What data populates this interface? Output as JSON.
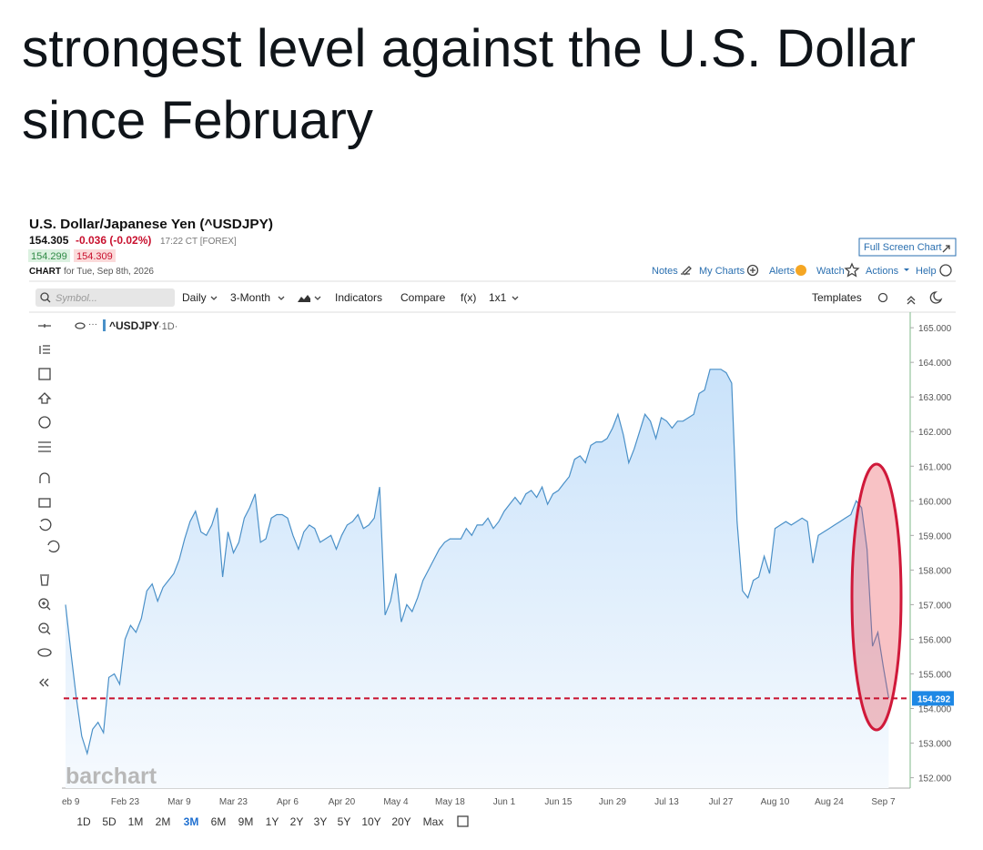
{
  "tweet": {
    "lines": [
      "strongest level against the U.S. Dollar",
      "since February"
    ]
  },
  "quote": {
    "title": "U.S. Dollar/Japanese Yen (^USDJPY)",
    "last": "154.305",
    "change": "-0.036 (-0.02%)",
    "time": "17:22 CT [FOREX]",
    "bid": "154.299",
    "ask": "154.309",
    "chart_label": "CHART",
    "chart_for": "for Tue, Sep 8th, 2026",
    "full_screen": "Full Screen Chart",
    "links": [
      "Notes",
      "My Charts",
      "Alerts",
      "Watch",
      "Actions",
      "Help"
    ]
  },
  "toolbar": {
    "symbol_placeholder": "Symbol...",
    "items": [
      "Daily",
      "3-Month",
      "Indicators",
      "Compare",
      "f(x)",
      "1x1"
    ],
    "templates": "Templates"
  },
  "ranges": {
    "items": [
      "1D",
      "5D",
      "1M",
      "2M",
      "3M",
      "6M",
      "9M",
      "1Y",
      "2Y",
      "3Y",
      "5Y",
      "10Y",
      "20Y",
      "Max"
    ],
    "selected": 4
  },
  "chart_data": {
    "type": "line",
    "watermark": "barchart",
    "interval_label": "·1D·",
    "categories": [
      null,
      "eb 9",
      null,
      null,
      null,
      null,
      null,
      null,
      null,
      null,
      null,
      "Feb 23",
      null,
      null,
      null,
      null,
      null,
      null,
      null,
      null,
      null,
      "Mar 9",
      null,
      null,
      null,
      null,
      null,
      null,
      null,
      null,
      null,
      "Mar 23",
      null,
      null,
      null,
      null,
      null,
      null,
      null,
      null,
      null,
      "Apr 6",
      null,
      null,
      null,
      null,
      null,
      null,
      null,
      null,
      null,
      "Apr 20",
      null,
      null,
      null,
      null,
      null,
      null,
      null,
      null,
      null,
      "May 4",
      null,
      null,
      null,
      null,
      null,
      null,
      null,
      null,
      null,
      "May 18",
      null,
      null,
      null,
      null,
      null,
      null,
      null,
      null,
      null,
      "Jun 1",
      null,
      null,
      null,
      null,
      null,
      null,
      null,
      null,
      null,
      "Jun 15",
      null,
      null,
      null,
      null,
      null,
      null,
      null,
      null,
      null,
      "Jun 29",
      null,
      null,
      null,
      null,
      null,
      null,
      null,
      null,
      null,
      "Jul 13",
      null,
      null,
      null,
      null,
      null,
      null,
      null,
      null,
      null,
      "Jul 27",
      null,
      null,
      null,
      null,
      null,
      null,
      null,
      null,
      null,
      "Aug 10",
      null,
      null,
      null,
      null,
      null,
      null,
      null,
      null,
      null,
      "Aug 24",
      null,
      null,
      null,
      null,
      null,
      null,
      null,
      null,
      null,
      "Sep 7",
      null
    ],
    "series": [
      {
        "name": "^USDJPY",
        "color": "#4a90c8",
        "values": [
          157.0,
          155.6,
          154.3,
          153.2,
          152.7,
          153.4,
          153.6,
          153.3,
          154.9,
          155.0,
          154.7,
          156.0,
          156.4,
          156.2,
          156.6,
          157.4,
          157.6,
          157.1,
          157.5,
          157.7,
          157.9,
          158.3,
          158.9,
          159.4,
          159.7,
          159.1,
          159.0,
          159.3,
          159.8,
          157.8,
          159.1,
          158.5,
          158.8,
          159.5,
          159.8,
          160.2,
          158.8,
          158.9,
          159.5,
          159.6,
          159.6,
          159.5,
          159.0,
          158.6,
          159.1,
          159.3,
          159.2,
          158.8,
          158.9,
          159.0,
          158.6,
          159.0,
          159.3,
          159.4,
          159.6,
          159.2,
          159.3,
          159.5,
          160.4,
          156.7,
          157.1,
          157.9,
          156.5,
          157.0,
          156.8,
          157.2,
          157.7,
          158.0,
          158.3,
          158.6,
          158.8,
          158.9,
          158.9,
          158.9,
          159.2,
          159.0,
          159.3,
          159.3,
          159.5,
          159.2,
          159.4,
          159.7,
          159.9,
          160.1,
          159.9,
          160.2,
          160.3,
          160.1,
          160.4,
          159.9,
          160.2,
          160.3,
          160.5,
          160.7,
          161.2,
          161.3,
          161.1,
          161.6,
          161.7,
          161.7,
          161.8,
          162.1,
          162.5,
          161.9,
          161.1,
          161.5,
          162.0,
          162.5,
          162.3,
          161.8,
          162.4,
          162.3,
          162.1,
          162.3,
          162.3,
          162.4,
          162.5,
          163.1,
          163.2,
          163.8,
          163.8,
          163.8,
          163.7,
          163.4,
          159.4,
          157.4,
          157.2,
          157.7,
          157.8,
          158.4,
          157.9,
          159.2,
          159.3,
          159.4,
          159.3,
          159.4,
          159.5,
          159.4,
          158.2,
          159.0,
          159.1,
          159.2,
          159.3,
          159.4,
          159.5,
          159.6,
          160.0,
          159.8,
          158.6,
          155.8,
          156.2,
          155.2,
          154.3
        ]
      }
    ],
    "price_line": 154.292,
    "price_line_color": "#c8102e",
    "ylim": [
      151.7,
      165.45
    ],
    "yticks": [
      {
        "value": 165,
        "label": "165.000"
      },
      {
        "value": 164,
        "label": "164.000"
      },
      {
        "value": 163,
        "label": "163.000"
      },
      {
        "value": 162,
        "label": "162.000"
      },
      {
        "value": 161,
        "label": "161.000"
      },
      {
        "value": 160,
        "label": "160.000"
      },
      {
        "value": 159,
        "label": "159.000"
      },
      {
        "value": 158,
        "label": "158.000"
      },
      {
        "value": 157,
        "label": "157.000"
      },
      {
        "value": 156,
        "label": "156.000"
      },
      {
        "value": 155,
        "label": "155.000"
      },
      {
        "value": 154,
        "label": "154.000"
      },
      {
        "value": 153,
        "label": "153.000"
      },
      {
        "value": 152,
        "label": "152.000"
      }
    ]
  }
}
